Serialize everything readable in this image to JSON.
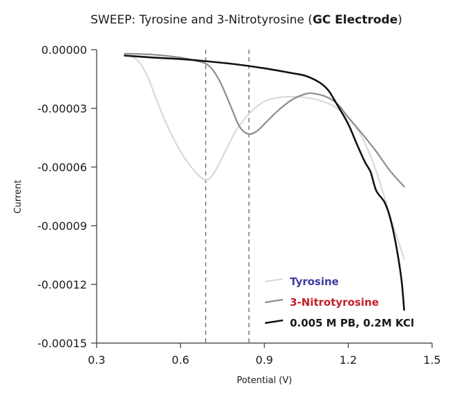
{
  "chart_data": {
    "type": "line",
    "title_prefix": "SWEEP: Tyrosine and 3-Nitrotyrosine (",
    "title_bold": "GC Electrode",
    "title_suffix": ")",
    "xlabel": "Potential (V)",
    "ylabel": "Current",
    "xlim": [
      0.3,
      1.5
    ],
    "ylim": [
      -0.00015,
      0.0
    ],
    "xticks": [
      0.3,
      0.6,
      0.9,
      1.2,
      1.5
    ],
    "xtick_labels": [
      "0.3",
      "0.6",
      "0.9",
      "1.2",
      "1.5"
    ],
    "yticks": [
      0.0,
      -3e-05,
      -6e-05,
      -9e-05,
      -0.00012,
      -0.00015
    ],
    "ytick_labels": [
      "0.00000",
      "-0.00003",
      "-0.00006",
      "-0.00009",
      "-0.00012",
      "-0.00015"
    ],
    "grid": false,
    "legend_position": "bottom-right",
    "vlines": [
      0.69,
      0.845
    ],
    "series": [
      {
        "name": "Tyrosine",
        "color": "#d9d9d9",
        "label_color": "#3b3b9e",
        "x": [
          0.42,
          0.45,
          0.48,
          0.51,
          0.55,
          0.6,
          0.65,
          0.69,
          0.72,
          0.76,
          0.8,
          0.85,
          0.9,
          0.95,
          1.0,
          1.05,
          1.1,
          1.15,
          1.2,
          1.25,
          1.3,
          1.35,
          1.4
        ],
        "y": [
          -3e-06,
          -6e-06,
          -1.3e-05,
          -2.4e-05,
          -3.8e-05,
          -5.2e-05,
          -6.2e-05,
          -6.65e-05,
          -6.3e-05,
          -5.2e-05,
          -4.1e-05,
          -3.2e-05,
          -2.65e-05,
          -2.45e-05,
          -2.4e-05,
          -2.45e-05,
          -2.6e-05,
          -2.9e-05,
          -3.5e-05,
          -4.5e-05,
          -6.2e-05,
          -8.5e-05,
          -0.000107
        ]
      },
      {
        "name": "3-Nitrotyrosine",
        "color": "#8c8c8c",
        "label_color": "#c0202a",
        "x": [
          0.4,
          0.5,
          0.6,
          0.65,
          0.7,
          0.74,
          0.78,
          0.81,
          0.84,
          0.87,
          0.9,
          0.95,
          1.0,
          1.05,
          1.08,
          1.12,
          1.16,
          1.2,
          1.25,
          1.3,
          1.35,
          1.4
        ],
        "y": [
          -2e-06,
          -2.5e-06,
          -4e-06,
          -5.5e-06,
          -8e-06,
          -1.6e-05,
          -2.9e-05,
          -3.9e-05,
          -4.3e-05,
          -4.2e-05,
          -3.8e-05,
          -3.1e-05,
          -2.55e-05,
          -2.25e-05,
          -2.25e-05,
          -2.4e-05,
          -2.75e-05,
          -3.45e-05,
          -4.3e-05,
          -5.2e-05,
          -6.2e-05,
          -7e-05
        ]
      },
      {
        "name": "0.005 M PB, 0.2M KCl",
        "color": "#111111",
        "label_color": "#1a1a1a",
        "x": [
          0.4,
          0.5,
          0.6,
          0.7,
          0.8,
          0.9,
          1.0,
          1.05,
          1.1,
          1.13,
          1.16,
          1.2,
          1.23,
          1.26,
          1.28,
          1.3,
          1.33,
          1.35,
          1.37,
          1.39,
          1.4
        ],
        "y": [
          -3e-06,
          -4e-06,
          -4.8e-06,
          -6e-06,
          -7.5e-06,
          -9.5e-06,
          -1.2e-05,
          -1.35e-05,
          -1.7e-05,
          -2.1e-05,
          -2.8e-05,
          -3.8e-05,
          -4.8e-05,
          -5.75e-05,
          -6.25e-05,
          -7.2e-05,
          -7.8e-05,
          -8.6e-05,
          -9.9e-05,
          -0.000117,
          -0.000133
        ]
      }
    ]
  }
}
